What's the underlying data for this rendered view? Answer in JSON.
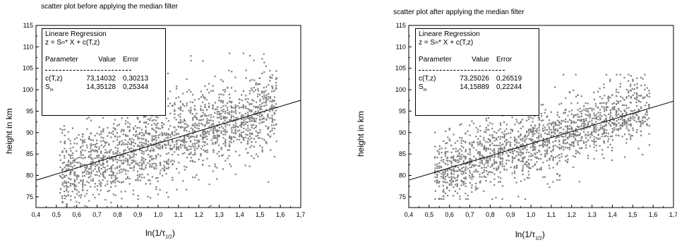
{
  "chart_data": [
    {
      "type": "scatter",
      "title": "scatter plot before applying the median filter",
      "xlabel": "ln(1/τ1/2)",
      "xlabel_main": "ln(1/τ",
      "xlabel_sub": "1/2",
      "xlabel_close": ")",
      "ylabel": "height in km",
      "xlim": [
        0.4,
        1.7
      ],
      "ylim": [
        72.5,
        115
      ],
      "x_ticks": [
        "0,4",
        "0,5",
        "0,6",
        "0,7",
        "0,8",
        "0,9",
        "1,0",
        "1,1",
        "1,2",
        "1,3",
        "1,4",
        "1,5",
        "1,6",
        "1,7"
      ],
      "y_ticks": [
        "75",
        "80",
        "85",
        "90",
        "95",
        "100",
        "105",
        "110",
        "115"
      ],
      "grid": false,
      "marker_color": "#808080",
      "line_color": "#000000",
      "legend": {
        "title": "Lineare Regression",
        "formula": "z = S",
        "formula_sub": "m",
        "formula_rest": " * X + c(T,z)",
        "headers": [
          "Parameter",
          "Value",
          "Error"
        ],
        "rows": [
          {
            "param": "c(T,z)",
            "param_sub": "",
            "value": "73,14032",
            "error": "0,30213"
          },
          {
            "param": "S",
            "param_sub": "m",
            "value": "14,35128",
            "error": "0,25344"
          }
        ]
      },
      "regression": {
        "intercept": 73.14032,
        "slope": 14.35128,
        "x_range": [
          0.4,
          1.7
        ]
      },
      "scatter_model": {
        "x_min": 0.52,
        "x_max": 1.58,
        "spread": 4.6,
        "outlier_spread": 8.5,
        "count": 1900,
        "y_min": 72.5,
        "y_max": 108.5,
        "seed": 11
      }
    },
    {
      "type": "scatter",
      "title": "scatter plot after applying the median filter",
      "xlabel": "ln(1/τ1/2)",
      "xlabel_main": "ln(1/τ",
      "xlabel_sub": "1/2",
      "xlabel_close": ")",
      "ylabel": "height in km",
      "xlim": [
        0.4,
        1.7
      ],
      "ylim": [
        72.5,
        115
      ],
      "x_ticks": [
        "0,4",
        "0,5",
        "0,6",
        "0,7",
        "0,8",
        "0,9",
        "1,0",
        "1,1",
        "1,2",
        "1,3",
        "1,4",
        "1,5",
        "1,6",
        "1,7"
      ],
      "y_ticks": [
        "75",
        "80",
        "85",
        "90",
        "95",
        "100",
        "105",
        "110",
        "115"
      ],
      "grid": false,
      "marker_color": "#808080",
      "line_color": "#000000",
      "legend": {
        "title": "Lineare Regression",
        "formula": "z = S",
        "formula_sub": "m",
        "formula_rest": " * X + c(T,z)",
        "headers": [
          "Parameter",
          "Value",
          "Error"
        ],
        "rows": [
          {
            "param": "c(T,z)",
            "param_sub": "",
            "value": "73,25026",
            "error": "0,26519"
          },
          {
            "param": "S",
            "param_sub": "m",
            "value": "14,15889",
            "error": "0,22244"
          }
        ]
      },
      "regression": {
        "intercept": 73.25026,
        "slope": 14.15889,
        "x_range": [
          0.4,
          1.7
        ]
      },
      "scatter_model": {
        "x_min": 0.53,
        "x_max": 1.58,
        "spread": 3.6,
        "outlier_spread": 6.0,
        "count": 1700,
        "y_min": 74.5,
        "y_max": 103.5,
        "seed": 23
      }
    }
  ]
}
